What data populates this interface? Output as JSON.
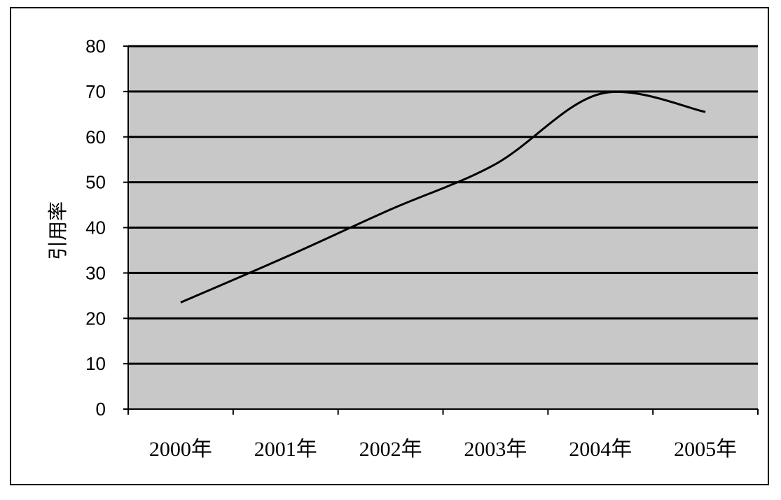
{
  "chart_data": {
    "type": "line",
    "title": "",
    "xlabel": "",
    "ylabel": "引用率",
    "categories": [
      "2000年",
      "2001年",
      "2002年",
      "2003年",
      "2004年",
      "2005年"
    ],
    "values": [
      23.5,
      33.5,
      44,
      54,
      69.5,
      65.5
    ],
    "ylim": [
      0,
      80
    ],
    "yticks": [
      "0",
      "10",
      "20",
      "30",
      "40",
      "50",
      "60",
      "70",
      "80"
    ],
    "grid": true,
    "smoothed": true,
    "legend": "none",
    "colors": {
      "plot_background": "#c8c8c8",
      "line": "#000000",
      "grid": "#000000"
    }
  }
}
